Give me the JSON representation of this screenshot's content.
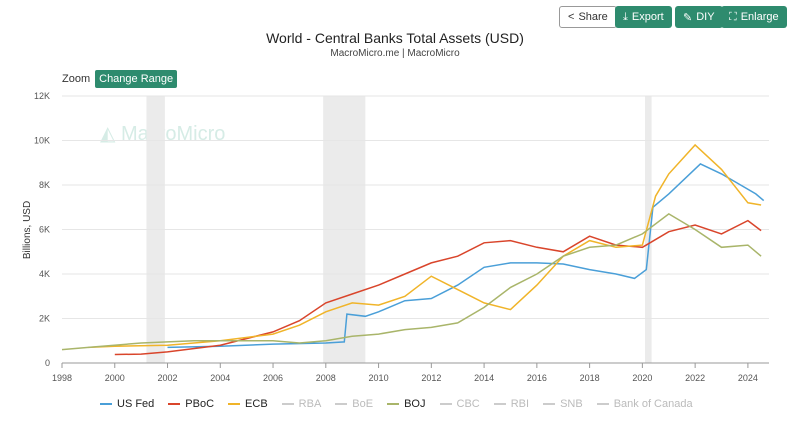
{
  "toolbar": {
    "share": "Share",
    "export": "Export",
    "diy": "DIY",
    "enlarge": "Enlarge"
  },
  "zoom": {
    "label": "Zoom",
    "change_range": "Change Range"
  },
  "watermark": "MacroMicro",
  "chart_data": {
    "type": "line",
    "title": "World - Central Banks Total Assets (USD)",
    "subtitle": "MacroMicro.me | MacroMicro",
    "ylabel": "Billions, USD",
    "xlim": [
      1998,
      2024.8
    ],
    "ylim": [
      0,
      12000
    ],
    "xticks": [
      "1998",
      "2000",
      "2002",
      "2004",
      "2006",
      "2008",
      "2010",
      "2012",
      "2014",
      "2016",
      "2018",
      "2020",
      "2022",
      "2024"
    ],
    "yticks": [
      "0",
      "2K",
      "4K",
      "6K",
      "8K",
      "10K",
      "12K"
    ],
    "grid": "horizontal",
    "legend_position": "bottom",
    "recession_bands": [
      [
        2001.2,
        2001.9
      ],
      [
        2007.9,
        2009.5
      ],
      [
        2020.1,
        2020.35
      ]
    ],
    "series": [
      {
        "name": "US Fed",
        "color": "#4a9fd8",
        "visible": true,
        "x": [
          2002,
          2004,
          2006,
          2008,
          2008.7,
          2008.8,
          2009.5,
          2010,
          2011,
          2012,
          2013,
          2014,
          2015,
          2016,
          2017,
          2018,
          2019,
          2019.7,
          2020.15,
          2020.4,
          2021,
          2022.2,
          2023,
          2024.3,
          2024.6
        ],
        "y": [
          700,
          750,
          850,
          900,
          950,
          2200,
          2100,
          2300,
          2800,
          2900,
          3500,
          4300,
          4500,
          4500,
          4450,
          4200,
          4000,
          3800,
          4200,
          7000,
          7600,
          8950,
          8500,
          7600,
          7300
        ]
      },
      {
        "name": "PBoC",
        "color": "#d9452b",
        "visible": true,
        "x": [
          2000,
          2001,
          2002,
          2004,
          2006,
          2007,
          2008,
          2009,
          2010,
          2011,
          2012,
          2013,
          2014,
          2015,
          2016,
          2017,
          2018,
          2019,
          2020,
          2021,
          2022,
          2023,
          2024,
          2024.5
        ],
        "y": [
          380,
          400,
          500,
          800,
          1400,
          1900,
          2700,
          3100,
          3500,
          4000,
          4500,
          4800,
          5400,
          5500,
          5200,
          5000,
          5700,
          5300,
          5200,
          5900,
          6200,
          5800,
          6400,
          5950
        ]
      },
      {
        "name": "ECB",
        "color": "#f0b429",
        "visible": true,
        "x": [
          1999,
          2000,
          2002,
          2004,
          2006,
          2007,
          2008,
          2009,
          2010,
          2011,
          2012,
          2013,
          2014,
          2015,
          2016,
          2017,
          2018,
          2019,
          2020,
          2020.5,
          2021,
          2022,
          2023,
          2024,
          2024.5
        ],
        "y": [
          700,
          750,
          800,
          1000,
          1300,
          1700,
          2300,
          2700,
          2600,
          3000,
          3900,
          3300,
          2700,
          2400,
          3500,
          4800,
          5500,
          5200,
          5300,
          7500,
          8500,
          9800,
          8700,
          7200,
          7100
        ]
      },
      {
        "name": "RBA",
        "color": "#ccc",
        "visible": false
      },
      {
        "name": "BoE",
        "color": "#ccc",
        "visible": false
      },
      {
        "name": "BOJ",
        "color": "#a9b56a",
        "visible": true,
        "x": [
          1998,
          1999,
          2001,
          2003,
          2006,
          2007,
          2008,
          2009,
          2010,
          2011,
          2012,
          2013,
          2014,
          2015,
          2016,
          2017,
          2018,
          2019,
          2020,
          2021,
          2022,
          2023,
          2024,
          2024.5
        ],
        "y": [
          600,
          700,
          900,
          1000,
          1000,
          900,
          1000,
          1200,
          1300,
          1500,
          1600,
          1800,
          2500,
          3400,
          4000,
          4800,
          5200,
          5300,
          5800,
          6700,
          6000,
          5200,
          5300,
          4800
        ]
      },
      {
        "name": "CBC",
        "color": "#ccc",
        "visible": false
      },
      {
        "name": "RBI",
        "color": "#ccc",
        "visible": false
      },
      {
        "name": "SNB",
        "color": "#ccc",
        "visible": false
      },
      {
        "name": "Bank of Canada",
        "color": "#ccc",
        "visible": false
      }
    ]
  }
}
